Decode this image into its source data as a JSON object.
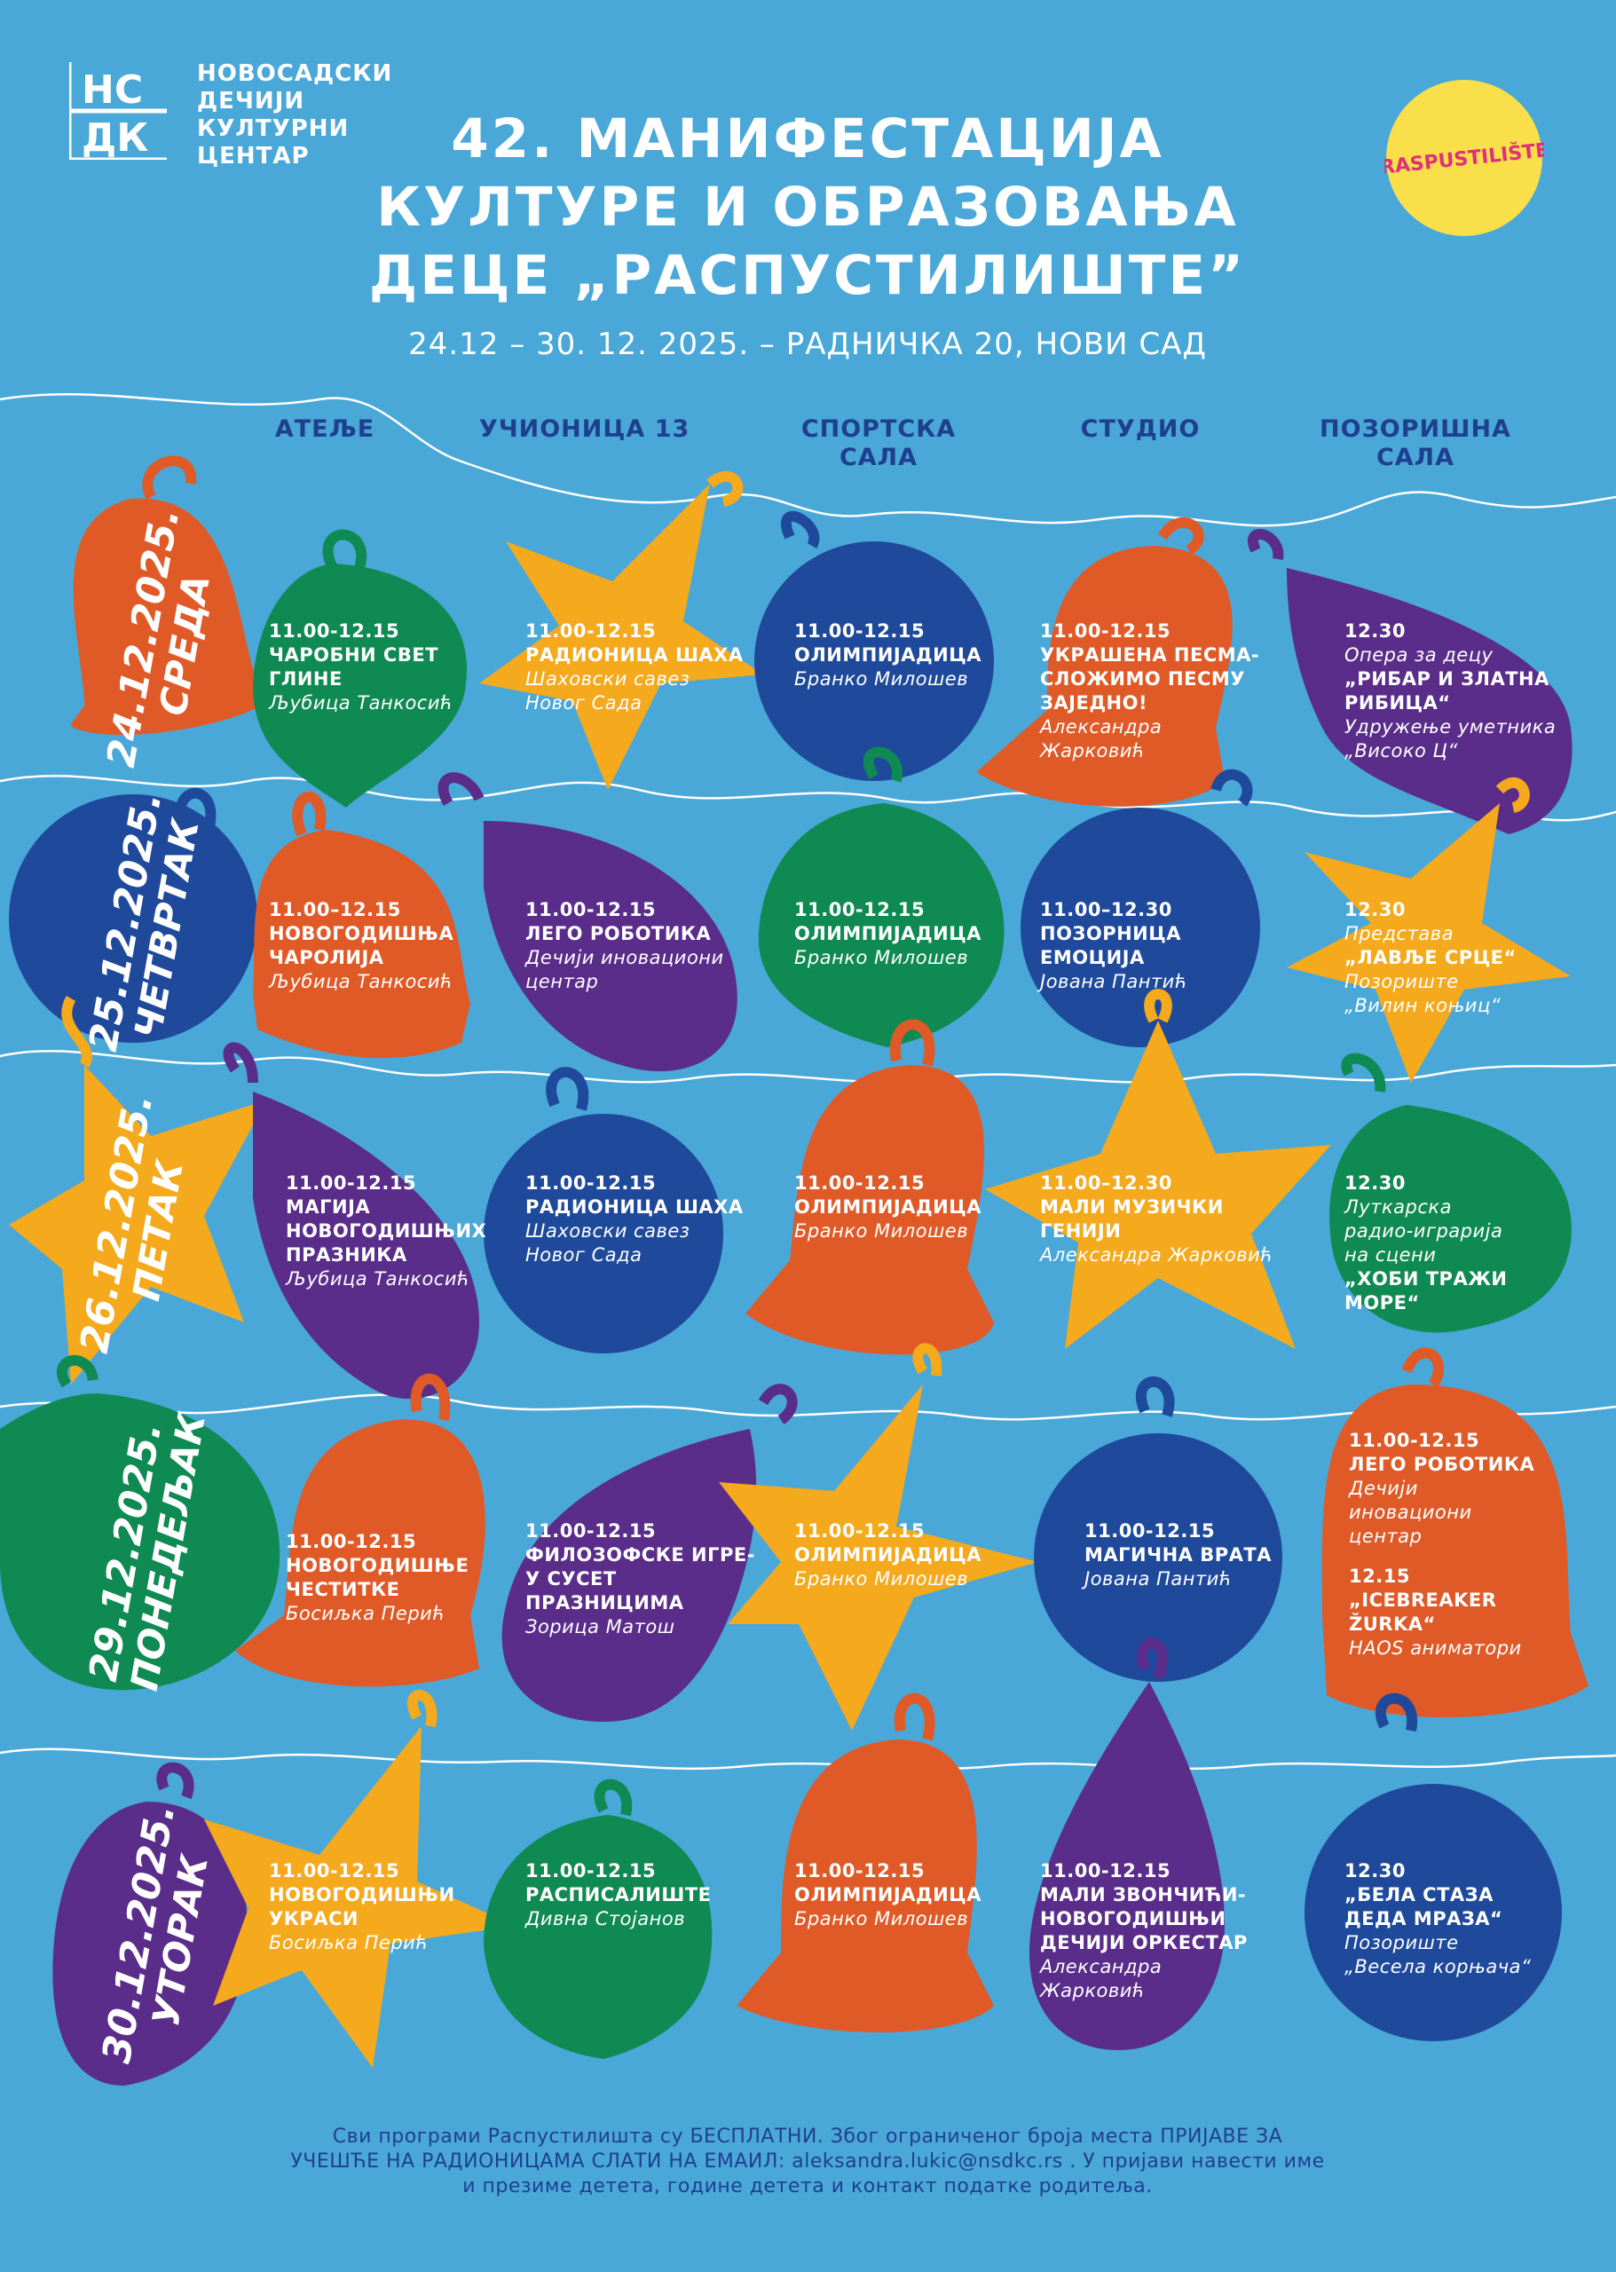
{
  "organizer": {
    "line1": "НОВОСАДСКИ",
    "line2": "ДЕЧИЈИ",
    "line3": "КУЛТУРНИ",
    "line4": "ЦЕНТАР",
    "logo_letters_top": "НС",
    "logo_letters_bottom": "ДК"
  },
  "title": {
    "line1": "42. МАНИФЕСТАЦИЈА",
    "line2": "КУЛТУРЕ И ОБРАЗОВАЊА",
    "line3": "ДЕЦЕ „РАСПУСТИЛИШТЕ”"
  },
  "subtitle": "24.12 – 30. 12. 2025. – РАДНИЧКА 20, НОВИ САД",
  "badge_text": "RASPUSTILIŠTE",
  "columns": [
    {
      "line1": "АТЕЉЕ",
      "line2": ""
    },
    {
      "line1": "УЧИОНИЦА 13",
      "line2": ""
    },
    {
      "line1": "СПОРТСКА",
      "line2": "САЛА"
    },
    {
      "line1": "СТУДИО",
      "line2": ""
    },
    {
      "line1": "ПОЗОРИШНА",
      "line2": "САЛА"
    }
  ],
  "days": [
    {
      "date": "24.12.2025.",
      "name": "СРЕДА"
    },
    {
      "date": "25.12.2025.",
      "name": "ЧЕТВРТАК"
    },
    {
      "date": "26.12.2025.",
      "name": "ПЕТАК"
    },
    {
      "date": "29.12.2025.",
      "name": "ПОНЕДЕЉАК"
    },
    {
      "date": "30.12.2025.",
      "name": "УТОРАК"
    }
  ],
  "events": {
    "d1_c1": {
      "time": "11.00-12.15",
      "title1": "ЧАРОБНИ СВЕТ ГЛИНЕ",
      "by1": "Љубица Танкосић"
    },
    "d1_c2": {
      "time": "11.00-12.15",
      "title1": "РАДИОНИЦА ШАХА",
      "by1": "Шаховски савез",
      "by2": "Новог Сада"
    },
    "d1_c3": {
      "time": "11.00-12.15",
      "title1": "ОЛИМПИЈАДИЦА",
      "by1": "Бранко Милошев"
    },
    "d1_c4": {
      "time": "11.00-12.15",
      "title1": "УКРАШЕНА ПЕСМА-",
      "title2": "СЛОЖИМО ПЕСМУ",
      "title3": "ЗАЈЕДНО!",
      "by1": "Александра",
      "by2": "Жарковић"
    },
    "d1_c5": {
      "time": "12.30",
      "by1": "Опера за децу",
      "title1": "„РИБАР И ЗЛАТНА",
      "title2": "РИБИЦА“",
      "by2": "Удружење уметника",
      "by3": "„Високо Ц“"
    },
    "d2_c1": {
      "time": "11.00–12.15",
      "title1": "НОВОГОДИШЊА",
      "title2": "ЧАРОЛИЈА",
      "by1": "Љубица Танкосић"
    },
    "d2_c2": {
      "time": "11.00-12.15",
      "title1": "ЛЕГО РОБОТИКА",
      "by1": "Дечији иновациони",
      "by2": "центар"
    },
    "d2_c3": {
      "time": "11.00-12.15",
      "title1": "ОЛИМПИЈАДИЦА",
      "by1": "Бранко Милошев"
    },
    "d2_c4": {
      "time": "11.00–12.30",
      "title1": "ПОЗОРНИЦА ЕМОЦИЈА",
      "by1": "Јована Пантић"
    },
    "d2_c5": {
      "time": "12.30",
      "by1": "Представа",
      "title1": "„ЛАВЉЕ СРЦЕ“",
      "by2": "Позориште",
      "by3": "„Вилин коњиц“"
    },
    "d3_c1": {
      "time": "11.00-12.15",
      "title1": "МАГИЈА",
      "title2": "НОВОГОДИШЊИХ",
      "title3": "ПРАЗНИКА",
      "by1": "Љубица Танкосић"
    },
    "d3_c2": {
      "time": "11.00-12.15",
      "title1": "РАДИОНИЦА ШАХА",
      "by1": "Шаховски савез",
      "by2": "Новог Сада"
    },
    "d3_c3": {
      "time": "11.00-12.15",
      "title1": "ОЛИМПИЈАДИЦА",
      "by1": "Бранко Милошев"
    },
    "d3_c4": {
      "time": "11.00–12.30",
      "title1": "МАЛИ МУЗИЧКИ ГЕНИЈИ",
      "by1": "Александра Жарковић"
    },
    "d3_c5": {
      "time": "12.30",
      "by1": "Луткарска",
      "by2": "радио-играрија",
      "by3": "на сцени",
      "title1": "„ХОБИ ТРАЖИ МОРЕ“"
    },
    "d4_c1": {
      "time": "11.00-12.15",
      "title1": "НОВОГОДИШЊЕ",
      "title2": "ЧЕСТИТКЕ",
      "by1": "Босиљка Перић"
    },
    "d4_c2": {
      "time": "11.00-12.15",
      "title1": "ФИЛОЗОФСКЕ ИГРЕ-",
      "title2": "У СУСЕТ ПРАЗНИЦИМА",
      "by1": "Зорица Матош"
    },
    "d4_c3": {
      "time": "11.00-12.15",
      "title1": "ОЛИМПИЈАДИЦА",
      "by1": "Бранко Милошев"
    },
    "d4_c4": {
      "time": "11.00-12.15",
      "title1": "МАГИЧНА ВРАТА",
      "by1": "Јована Пантић"
    },
    "d4_c5": {
      "time": "11.00-12.15",
      "title1": "ЛЕГО РОБОТИКА",
      "by1": "Дечији",
      "by2": "иновациони",
      "by3": "центар",
      "time2": "12.15",
      "title2": "„ICEBREAKER ŽURKA“",
      "by4": "HAOS аниматори"
    },
    "d5_c1": {
      "time": "11.00-12.15",
      "title1": "НОВОГОДИШЊИ",
      "title2": "УКРАСИ",
      "by1": "Босиљка Перић"
    },
    "d5_c2": {
      "time": "11.00-12.15",
      "title1": "РАСПИСАЛИШТЕ",
      "by1": "Дивна Стојанов"
    },
    "d5_c3": {
      "time": "11.00-12.15",
      "title1": "ОЛИМПИЈАДИЦА",
      "by1": "Бранко Милошев"
    },
    "d5_c4": {
      "time": "11.00-12.15",
      "title1": "МАЛИ ЗВОНЧИЋИ-",
      "title2": "НОВОГОДИШЊИ",
      "title3": "ДЕЧИЈИ ОРКЕСТАР",
      "by1": "Александра",
      "by2": "Жарковић"
    },
    "d5_c5": {
      "time": "12.30",
      "title1": "„БЕЛА СТАЗА",
      "title2": "ДЕДА МРАЗА“",
      "by1": "Позориште",
      "by2": "„Весела корњача“"
    }
  },
  "footer": {
    "line1": "Сви програми Распустилишта су БЕСПЛАТНИ. Због ограниченог броја места ПРИЈАВЕ ЗА",
    "line2": "УЧЕШЋЕ НА РАДИОНИЦАМА СЛАТИ НА ЕМАИЛ: aleksandra.lukic@nsdkc.rs . У пријави навести име",
    "line3": "и презиме детета, године детета и контакт податке родитеља."
  },
  "colors": {
    "background": "#4aa8d8",
    "orange": "#e05a28",
    "green": "#0f8a52",
    "yellow": "#f5a91c",
    "blue": "#1f4a9c",
    "purple": "#5a2d8a",
    "heading": "#1f3f8f"
  }
}
